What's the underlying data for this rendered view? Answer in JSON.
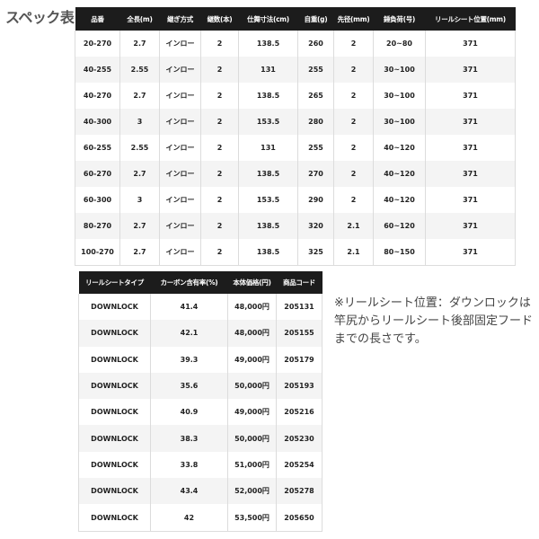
{
  "title": "スペック表",
  "spec_table": {
    "headers": [
      "品番",
      "全長(m)",
      "継ぎ方式",
      "継数(本)",
      "仕舞寸法(cm)",
      "自重(g)",
      "先径(mm)",
      "錘負荷(号)",
      "リールシート位置(mm)"
    ],
    "rows": [
      [
        "20-270",
        "2.7",
        "インロー",
        "2",
        "138.5",
        "260",
        "2",
        "20~80",
        "371"
      ],
      [
        "40-255",
        "2.55",
        "インロー",
        "2",
        "131",
        "255",
        "2",
        "30~100",
        "371"
      ],
      [
        "40-270",
        "2.7",
        "インロー",
        "2",
        "138.5",
        "265",
        "2",
        "30~100",
        "371"
      ],
      [
        "40-300",
        "3",
        "インロー",
        "2",
        "153.5",
        "280",
        "2",
        "30~100",
        "371"
      ],
      [
        "60-255",
        "2.55",
        "インロー",
        "2",
        "131",
        "255",
        "2",
        "40~120",
        "371"
      ],
      [
        "60-270",
        "2.7",
        "インロー",
        "2",
        "138.5",
        "270",
        "2",
        "40~120",
        "371"
      ],
      [
        "60-300",
        "3",
        "インロー",
        "2",
        "153.5",
        "290",
        "2",
        "40~120",
        "371"
      ],
      [
        "80-270",
        "2.7",
        "インロー",
        "2",
        "138.5",
        "320",
        "2.1",
        "60~120",
        "371"
      ],
      [
        "100-270",
        "2.7",
        "インロー",
        "2",
        "138.5",
        "325",
        "2.1",
        "80~150",
        "371"
      ]
    ]
  },
  "price_table": {
    "headers": [
      "リールシートタイプ",
      "カーボン含有率(%)",
      "本体価格(円)",
      "商品コード"
    ],
    "rows": [
      [
        "DOWNLOCK",
        "41.4",
        "48,000円",
        "205131"
      ],
      [
        "DOWNLOCK",
        "42.1",
        "48,000円",
        "205155"
      ],
      [
        "DOWNLOCK",
        "39.3",
        "49,000円",
        "205179"
      ],
      [
        "DOWNLOCK",
        "35.6",
        "50,000円",
        "205193"
      ],
      [
        "DOWNLOCK",
        "40.9",
        "49,000円",
        "205216"
      ],
      [
        "DOWNLOCK",
        "38.3",
        "50,000円",
        "205230"
      ],
      [
        "DOWNLOCK",
        "33.8",
        "51,000円",
        "205254"
      ],
      [
        "DOWNLOCK",
        "43.4",
        "52,000円",
        "205278"
      ],
      [
        "DOWNLOCK",
        "42",
        "53,500円",
        "205650"
      ]
    ]
  },
  "note": "※リールシート位置：ダウンロックは竿尻からリールシート後部固定フードまでの長さです。",
  "colors": {
    "header_bg": "#1c1c1c",
    "alt_row": "#f4f4f4",
    "border": "#dcdcdc"
  }
}
